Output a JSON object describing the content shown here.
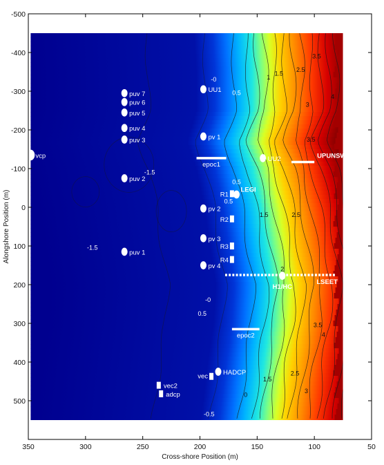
{
  "chart_data": {
    "type": "heatmap",
    "title": "",
    "xlabel": "Cross-shore Position (m)",
    "ylabel": "Alongshore Position (m)",
    "xlim": [
      350,
      50
    ],
    "ylim": [
      -500,
      600
    ],
    "x_ticks": [
      350,
      300,
      250,
      200,
      150,
      100,
      50
    ],
    "y_ticks": [
      -500,
      -400,
      -300,
      -200,
      -100,
      0,
      100,
      200,
      300,
      400,
      500
    ],
    "grid": false,
    "colormap": "jet",
    "field_extent": {
      "x": [
        348,
        75
      ],
      "y": [
        -450,
        550
      ]
    },
    "shoreline_profile": [
      {
        "y": -450,
        "x": 152
      },
      {
        "y": -350,
        "x": 150
      },
      {
        "y": -250,
        "x": 150
      },
      {
        "y": -170,
        "x": 158
      },
      {
        "y": -100,
        "x": 150
      },
      {
        "y": 0,
        "x": 143
      },
      {
        "y": 100,
        "x": 138
      },
      {
        "y": 200,
        "x": 133
      },
      {
        "y": 300,
        "x": 135
      },
      {
        "y": 400,
        "x": 140
      },
      {
        "y": 500,
        "x": 144
      },
      {
        "y": 550,
        "x": 146
      }
    ],
    "contour_labels": [
      {
        "text": "0.5",
        "x": 168,
        "y": -60
      },
      {
        "text": "1",
        "x": 140,
        "y": -330
      },
      {
        "text": "1.5",
        "x": 131,
        "y": -340
      },
      {
        "text": "2.5",
        "x": 112,
        "y": -350
      },
      {
        "text": "3.5",
        "x": 98,
        "y": -385
      },
      {
        "text": "3",
        "x": 106,
        "y": -260
      },
      {
        "text": "4",
        "x": 84,
        "y": -280
      },
      {
        "text": "0.5",
        "x": 168,
        "y": -290
      },
      {
        "text": "-0",
        "x": 188,
        "y": -325
      },
      {
        "text": "0.5",
        "x": 175,
        "y": -10
      },
      {
        "text": "1.5",
        "x": 144,
        "y": 25
      },
      {
        "text": "2.5",
        "x": 116,
        "y": 25
      },
      {
        "text": "3.5",
        "x": 103,
        "y": -170
      },
      {
        "text": "-0",
        "x": 193,
        "y": 245
      },
      {
        "text": "0.5",
        "x": 198,
        "y": 280
      },
      {
        "text": "1.5",
        "x": 141,
        "y": 450
      },
      {
        "text": "2.5",
        "x": 117,
        "y": 435
      },
      {
        "text": "3.5",
        "x": 97,
        "y": 310
      },
      {
        "text": "4",
        "x": 92,
        "y": 335
      },
      {
        "text": "3",
        "x": 107,
        "y": 480
      },
      {
        "text": "-1.5",
        "x": 244,
        "y": -85
      },
      {
        "text": "-1.5",
        "x": 294,
        "y": 110
      },
      {
        "text": "0",
        "x": 160,
        "y": 490
      },
      {
        "text": "-0.5",
        "x": 192,
        "y": 540
      },
      {
        "text": "2",
        "x": 128,
        "y": 165
      }
    ],
    "instruments": [
      {
        "label": "vcp",
        "x": 348,
        "y": -135,
        "marker": "circle"
      },
      {
        "label": "puv 7",
        "x": 266,
        "y": -295,
        "marker": "circle"
      },
      {
        "label": "puv 6",
        "x": 266,
        "y": -272,
        "marker": "circle"
      },
      {
        "label": "puv 5",
        "x": 266,
        "y": -245,
        "marker": "circle"
      },
      {
        "label": "puv 4",
        "x": 266,
        "y": -205,
        "marker": "circle"
      },
      {
        "label": "puv 3",
        "x": 266,
        "y": -175,
        "marker": "circle"
      },
      {
        "label": "puv 2",
        "x": 266,
        "y": -75,
        "marker": "circle"
      },
      {
        "label": "puv 1",
        "x": 266,
        "y": 115,
        "marker": "circle"
      },
      {
        "label": "UU1",
        "x": 197,
        "y": -305,
        "marker": "circle"
      },
      {
        "label": "pv 1",
        "x": 197,
        "y": -183,
        "marker": "circle"
      },
      {
        "label": "pv 2",
        "x": 197,
        "y": 3,
        "marker": "circle"
      },
      {
        "label": "pv 3",
        "x": 197,
        "y": 80,
        "marker": "circle"
      },
      {
        "label": "pv 4",
        "x": 197,
        "y": 150,
        "marker": "circle"
      },
      {
        "label": "UU2",
        "x": 145,
        "y": -127,
        "marker": "circle"
      },
      {
        "label": "LEGI",
        "x": 168,
        "y": -33,
        "marker": "circle",
        "bold": true
      },
      {
        "label": "H1/HC",
        "x": 128,
        "y": 177,
        "marker": "circle",
        "bold": true
      },
      {
        "label": "HADCP",
        "x": 184,
        "y": 425,
        "marker": "circle"
      },
      {
        "label": "R1",
        "x": 172,
        "y": -35,
        "marker": "square"
      },
      {
        "label": "R2",
        "x": 172,
        "y": 30,
        "marker": "square"
      },
      {
        "label": "R3",
        "x": 172,
        "y": 100,
        "marker": "square"
      },
      {
        "label": "R4",
        "x": 172,
        "y": 135,
        "marker": "square"
      },
      {
        "label": "vec",
        "x": 190,
        "y": 437,
        "marker": "square"
      },
      {
        "label": "vec2",
        "x": 236,
        "y": 460,
        "marker": "square"
      },
      {
        "label": "adcp",
        "x": 234,
        "y": 482,
        "marker": "square"
      }
    ],
    "arrays": [
      {
        "label": "epoc1",
        "x": [
          203,
          177
        ],
        "y": -127,
        "style": "solid"
      },
      {
        "label": "UPUNSW",
        "x": [
          120,
          100
        ],
        "y": -117,
        "style": "solid"
      },
      {
        "label": "LSEET",
        "x": [
          178,
          82
        ],
        "y": 175,
        "style": "dashed"
      },
      {
        "label": "epoc2",
        "x": [
          172,
          148
        ],
        "y": 315,
        "style": "solid"
      }
    ]
  }
}
